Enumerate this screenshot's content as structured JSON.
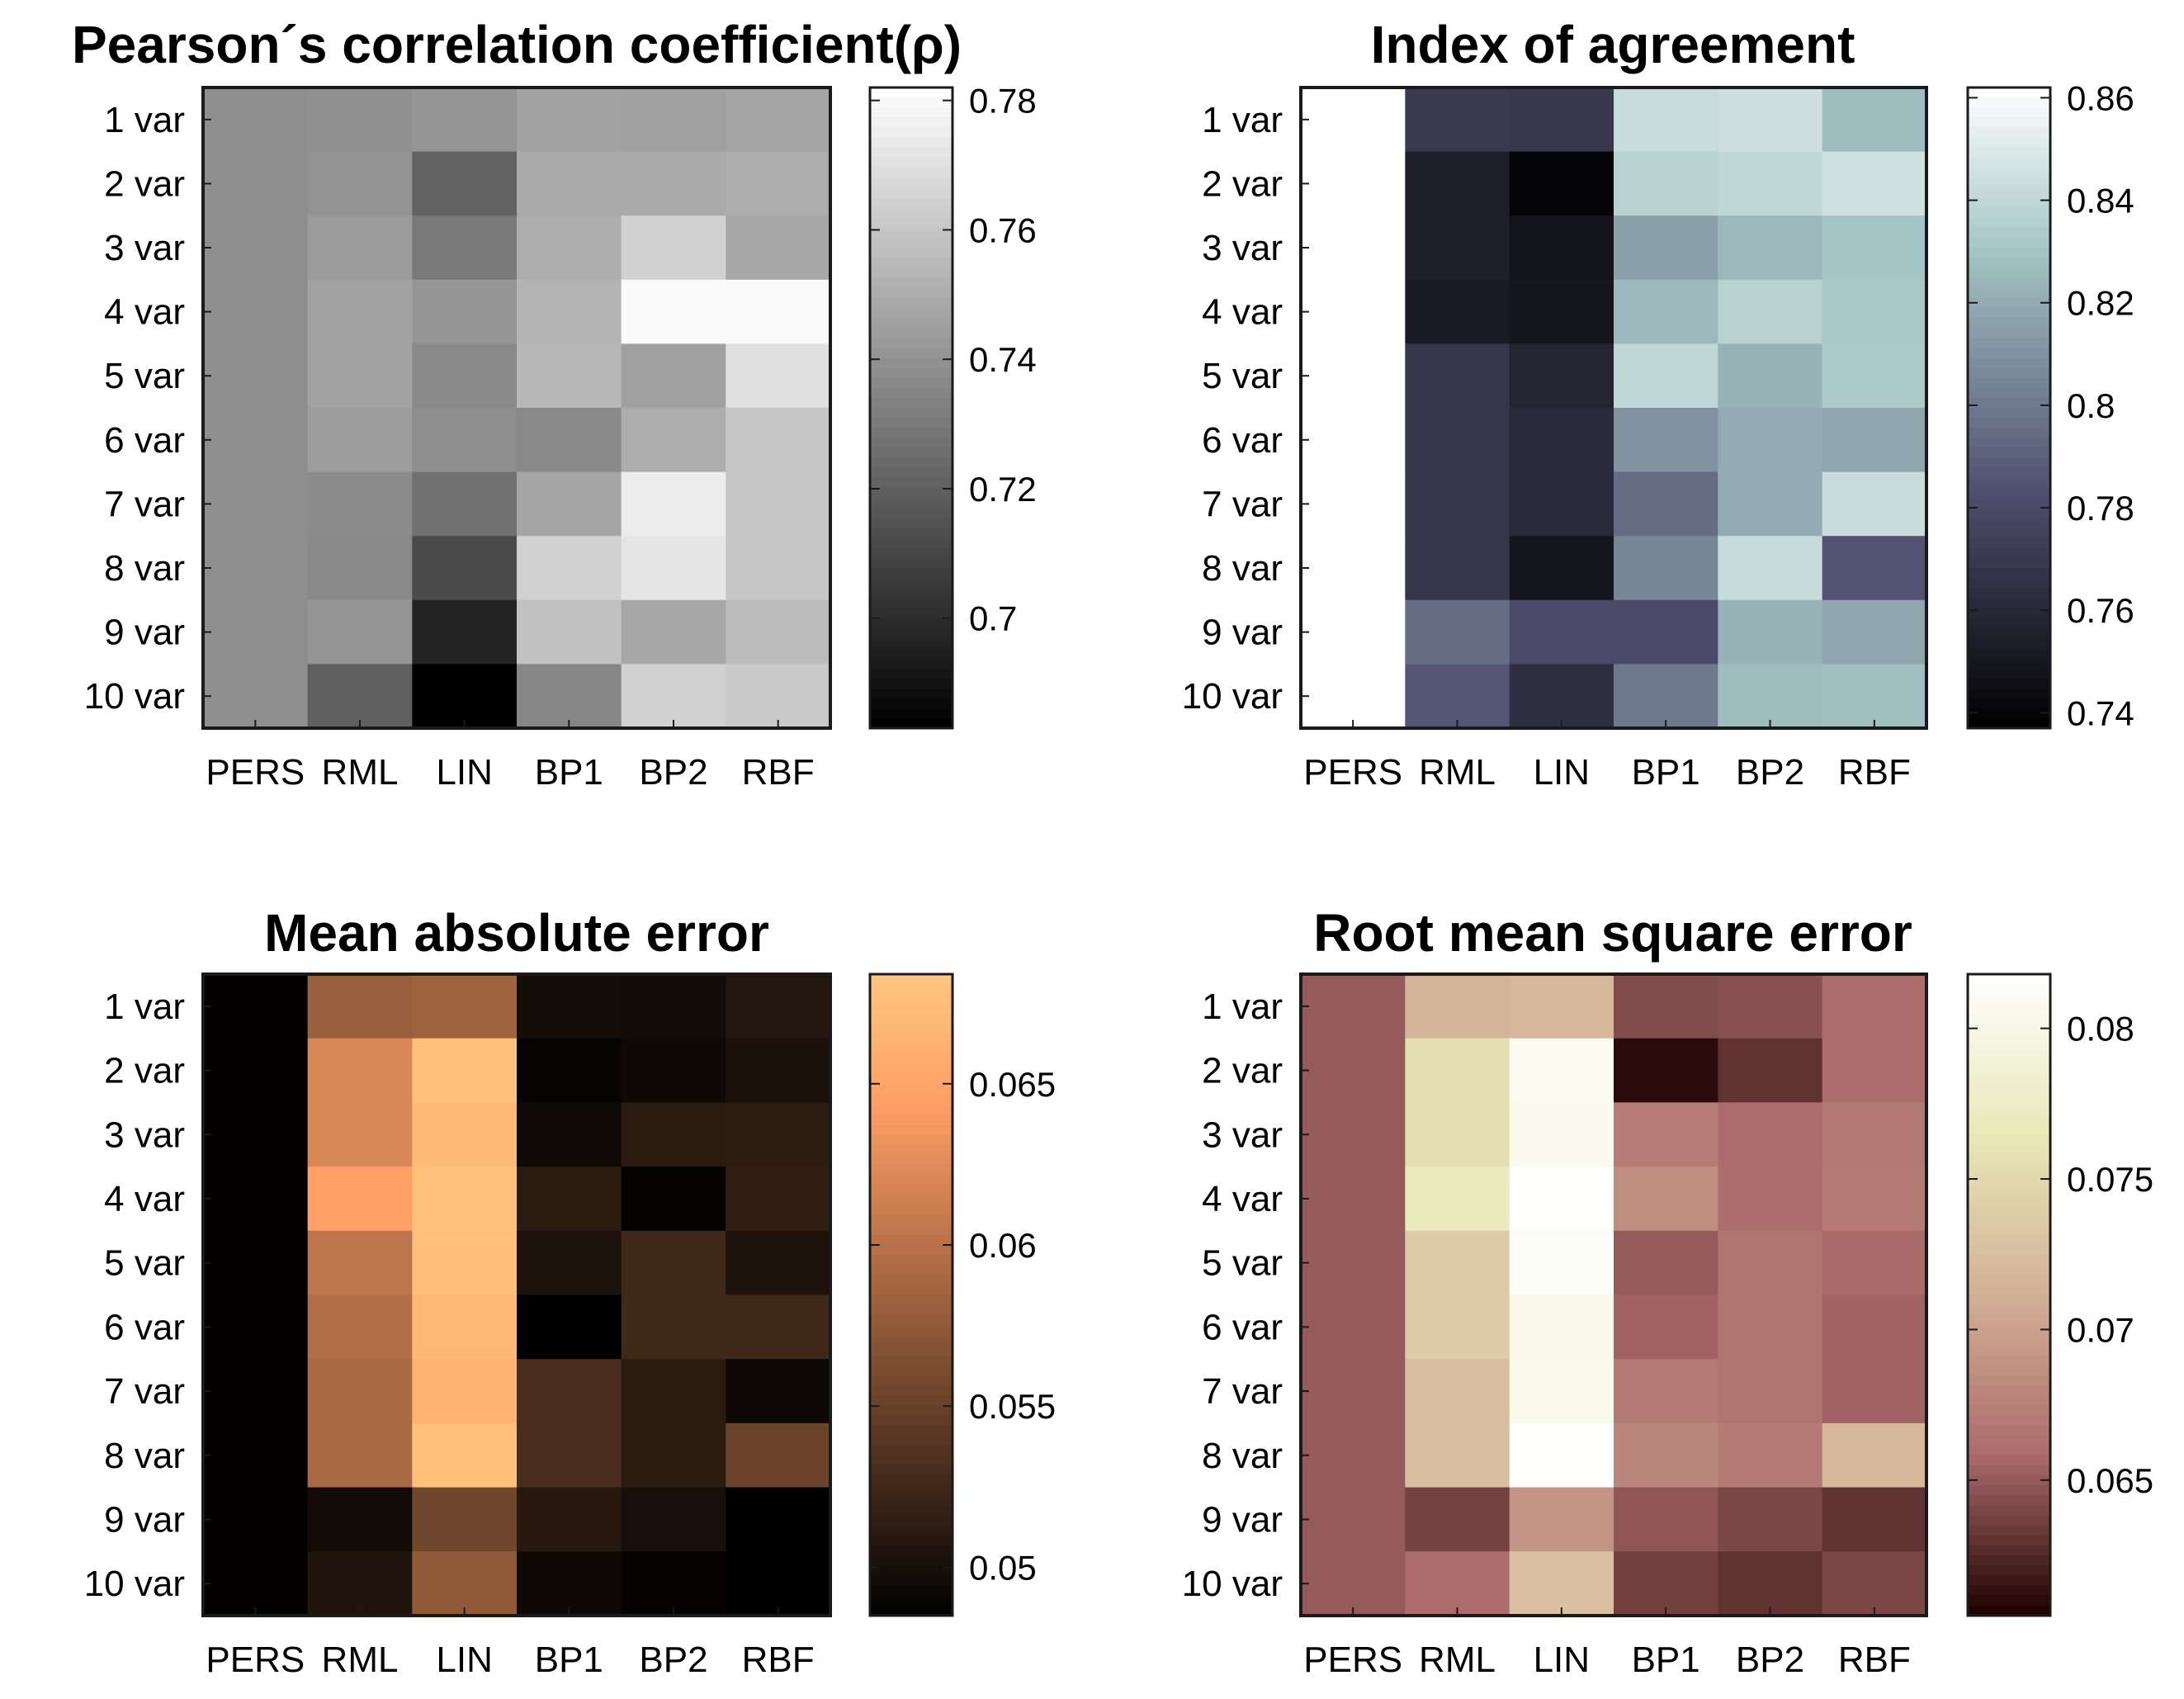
{
  "chart_data": [
    {
      "type": "heatmap",
      "title": "Pearson´s correlation coefficient(ρ)",
      "colormap": "gray",
      "x_categories": [
        "PERS",
        "RML",
        "LIN",
        "BP1",
        "BP2",
        "RBF"
      ],
      "y_categories": [
        "1 var",
        "2 var",
        "3 var",
        "4 var",
        "5 var",
        "6 var",
        "7 var",
        "8 var",
        "9 var",
        "10 var"
      ],
      "values": [
        [
          0.738,
          0.739,
          0.741,
          0.746,
          0.745,
          0.747
        ],
        [
          0.738,
          0.74,
          0.721,
          0.749,
          0.749,
          0.75
        ],
        [
          0.738,
          0.743,
          0.73,
          0.75,
          0.764,
          0.748
        ],
        [
          0.738,
          0.746,
          0.741,
          0.753,
          0.78,
          0.78
        ],
        [
          0.738,
          0.746,
          0.736,
          0.754,
          0.745,
          0.77
        ],
        [
          0.738,
          0.744,
          0.738,
          0.736,
          0.75,
          0.76
        ],
        [
          0.738,
          0.737,
          0.727,
          0.747,
          0.775,
          0.76
        ],
        [
          0.738,
          0.736,
          0.712,
          0.764,
          0.772,
          0.76
        ],
        [
          0.738,
          0.741,
          0.697,
          0.758,
          0.748,
          0.756
        ],
        [
          0.738,
          0.72,
          0.683,
          0.735,
          0.764,
          0.761
        ]
      ],
      "colorbar": {
        "min": 0.683,
        "max": 0.782,
        "ticks": [
          0.7,
          0.72,
          0.74,
          0.76,
          0.78
        ],
        "tick_labels": [
          "0.7",
          "0.72",
          "0.74",
          "0.76",
          "0.78"
        ]
      }
    },
    {
      "type": "heatmap",
      "title": "Index of agreement",
      "colormap": "bone",
      "x_categories": [
        "PERS",
        "RML",
        "LIN",
        "BP1",
        "BP2",
        "RBF"
      ],
      "y_categories": [
        "1 var",
        "2 var",
        "3 var",
        "4 var",
        "5 var",
        "6 var",
        "7 var",
        "8 var",
        "9 var",
        "10 var"
      ],
      "values": [
        [
          0.862,
          0.77,
          0.769,
          0.843,
          0.844,
          0.827
        ],
        [
          0.862,
          0.755,
          0.74,
          0.837,
          0.84,
          0.845
        ],
        [
          0.862,
          0.755,
          0.748,
          0.815,
          0.825,
          0.83
        ],
        [
          0.862,
          0.752,
          0.75,
          0.825,
          0.837,
          0.832
        ],
        [
          0.862,
          0.768,
          0.758,
          0.84,
          0.823,
          0.833
        ],
        [
          0.862,
          0.768,
          0.761,
          0.81,
          0.82,
          0.818
        ],
        [
          0.862,
          0.768,
          0.761,
          0.795,
          0.82,
          0.843
        ],
        [
          0.862,
          0.768,
          0.75,
          0.805,
          0.842,
          0.785
        ],
        [
          0.862,
          0.795,
          0.78,
          0.78,
          0.823,
          0.818
        ],
        [
          0.862,
          0.786,
          0.764,
          0.8,
          0.827,
          0.828
        ]
      ],
      "colorbar": {
        "min": 0.737,
        "max": 0.862,
        "ticks": [
          0.74,
          0.76,
          0.78,
          0.8,
          0.82,
          0.84,
          0.86
        ],
        "tick_labels": [
          "0.74",
          "0.76",
          "0.78",
          "0.8",
          "0.82",
          "0.84",
          "0.86"
        ]
      }
    },
    {
      "type": "heatmap",
      "title": "Mean absolute error",
      "colormap": "copper",
      "x_categories": [
        "PERS",
        "RML",
        "LIN",
        "BP1",
        "BP2",
        "RBF"
      ],
      "y_categories": [
        "1 var",
        "2 var",
        "3 var",
        "4 var",
        "5 var",
        "6 var",
        "7 var",
        "8 var",
        "9 var",
        "10 var"
      ],
      "values": [
        [
          0.0487,
          0.058,
          0.0584,
          0.0498,
          0.0496,
          0.0507
        ],
        [
          0.0487,
          0.062,
          0.0677,
          0.0489,
          0.0494,
          0.0502
        ],
        [
          0.0487,
          0.062,
          0.067,
          0.0495,
          0.0511,
          0.0513
        ],
        [
          0.0487,
          0.0645,
          0.068,
          0.0512,
          0.0488,
          0.0515
        ],
        [
          0.0487,
          0.0603,
          0.0676,
          0.0503,
          0.0525,
          0.0503
        ],
        [
          0.0487,
          0.0596,
          0.0669,
          0.0485,
          0.0525,
          0.0525
        ],
        [
          0.0487,
          0.059,
          0.0664,
          0.053,
          0.0512,
          0.0493
        ],
        [
          0.0487,
          0.059,
          0.0677,
          0.053,
          0.0512,
          0.0552
        ],
        [
          0.0487,
          0.0496,
          0.0555,
          0.051,
          0.05,
          0.0485
        ],
        [
          0.0487,
          0.0505,
          0.0575,
          0.0494,
          0.0488,
          0.0485
        ]
      ],
      "colorbar": {
        "min": 0.0485,
        "max": 0.0684,
        "ticks": [
          0.05,
          0.055,
          0.06,
          0.065
        ],
        "tick_labels": [
          "0.05",
          "0.055",
          "0.06",
          "0.065"
        ]
      }
    },
    {
      "type": "heatmap",
      "title": "Root mean square error",
      "colormap": "pink",
      "x_categories": [
        "PERS",
        "RML",
        "LIN",
        "BP1",
        "BP2",
        "RBF"
      ],
      "y_categories": [
        "1 var",
        "2 var",
        "3 var",
        "4 var",
        "5 var",
        "6 var",
        "7 var",
        "8 var",
        "9 var",
        "10 var"
      ],
      "values": [
        [
          0.065,
          0.0715,
          0.0718,
          0.0643,
          0.0645,
          0.066
        ],
        [
          0.065,
          0.0755,
          0.0808,
          0.061,
          0.063,
          0.066
        ],
        [
          0.065,
          0.0755,
          0.0806,
          0.0672,
          0.066,
          0.0668
        ],
        [
          0.065,
          0.077,
          0.0816,
          0.0685,
          0.066,
          0.067
        ],
        [
          0.065,
          0.0738,
          0.0812,
          0.065,
          0.0666,
          0.0658
        ],
        [
          0.065,
          0.0738,
          0.0802,
          0.0654,
          0.0666,
          0.0654
        ],
        [
          0.065,
          0.0725,
          0.0804,
          0.067,
          0.0666,
          0.0654
        ],
        [
          0.065,
          0.0725,
          0.0816,
          0.0678,
          0.067,
          0.0718
        ],
        [
          0.065,
          0.0638,
          0.069,
          0.0648,
          0.064,
          0.063
        ],
        [
          0.065,
          0.066,
          0.0728,
          0.0637,
          0.063,
          0.064
        ]
      ],
      "colorbar": {
        "min": 0.0605,
        "max": 0.0818,
        "ticks": [
          0.065,
          0.07,
          0.075,
          0.08
        ],
        "tick_labels": [
          "0.065",
          "0.07",
          "0.075",
          "0.08"
        ]
      }
    }
  ]
}
